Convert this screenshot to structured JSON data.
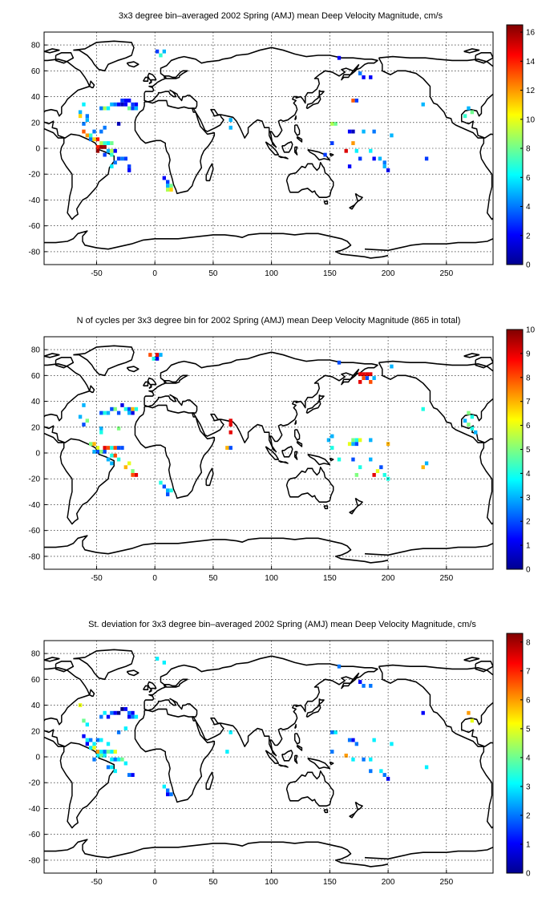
{
  "figure": {
    "panels": [
      {
        "title": "3x3 degree bin–averaged 2002 Spring (AMJ) mean Deep Velocity Magnitude, cm/s",
        "colorbar": {
          "ticks": [
            0,
            2,
            4,
            6,
            8,
            10,
            12,
            14,
            16
          ],
          "min": 0,
          "max": 16.5
        }
      },
      {
        "title": "N of cycles per 3x3 degree bin for 2002 Spring (AMJ) mean Deep Velocity Magnitude (865 in total)",
        "colorbar": {
          "ticks": [
            0,
            1,
            2,
            3,
            4,
            5,
            6,
            7,
            8,
            9,
            10
          ],
          "min": 0,
          "max": 10
        }
      },
      {
        "title": "St. deviation for 3x3 degree bin–averaged 2002 Spring (AMJ) mean Deep Velocity Magnitude, cm/s",
        "colorbar": {
          "ticks": [
            0,
            1,
            2,
            3,
            4,
            5,
            6,
            7,
            8
          ],
          "min": 0,
          "max": 8.3
        }
      }
    ]
  },
  "chart_data": [
    {
      "type": "heatmap",
      "title": "3x3 degree bin–averaged 2002 Spring (AMJ) mean Deep Velocity Magnitude, cm/s",
      "xlim": [
        -95,
        290
      ],
      "ylim": [
        -90,
        90
      ],
      "xticks": [
        -50,
        0,
        50,
        100,
        150,
        200,
        250
      ],
      "yticks": [
        -80,
        -60,
        -40,
        -20,
        0,
        20,
        40,
        60,
        80
      ],
      "grid": true,
      "colormap": "jet",
      "colorbar_range": [
        0,
        16.5
      ],
      "cells": [
        [
          2,
          75,
          3
        ],
        [
          8,
          75,
          5
        ],
        [
          5,
          72,
          7
        ],
        [
          -28,
          37,
          3
        ],
        [
          -25,
          37,
          2
        ],
        [
          -22,
          37,
          2
        ],
        [
          -31,
          34,
          2
        ],
        [
          -28,
          34,
          1
        ],
        [
          -25,
          34,
          2
        ],
        [
          -19,
          34,
          3
        ],
        [
          -16,
          34,
          2
        ],
        [
          -37,
          34,
          5
        ],
        [
          -34,
          34,
          4
        ],
        [
          -46,
          31,
          4
        ],
        [
          -43,
          31,
          9
        ],
        [
          -40,
          31,
          6
        ],
        [
          -22,
          31,
          8
        ],
        [
          -19,
          31,
          3
        ],
        [
          -16,
          31,
          5
        ],
        [
          -61,
          34,
          6
        ],
        [
          -64,
          28,
          5
        ],
        [
          -58,
          25,
          4
        ],
        [
          -64,
          25,
          11
        ],
        [
          -58,
          22,
          5
        ],
        [
          -61,
          19,
          4
        ],
        [
          -31,
          19,
          1
        ],
        [
          -43,
          16,
          4
        ],
        [
          -46,
          13,
          4
        ],
        [
          -61,
          13,
          13
        ],
        [
          -58,
          10,
          12
        ],
        [
          -55,
          10,
          7
        ],
        [
          -52,
          13,
          4
        ],
        [
          -55,
          7,
          4
        ],
        [
          -52,
          7,
          11
        ],
        [
          -49,
          7,
          14
        ],
        [
          -46,
          4,
          9
        ],
        [
          -43,
          4,
          7
        ],
        [
          -40,
          4,
          6
        ],
        [
          -37,
          4,
          8
        ],
        [
          -49,
          1,
          14
        ],
        [
          -46,
          1,
          16
        ],
        [
          -43,
          1,
          16
        ],
        [
          -49,
          -2,
          16
        ],
        [
          -40,
          -2,
          5
        ],
        [
          -37,
          -2,
          9
        ],
        [
          -34,
          -2,
          2
        ],
        [
          -43,
          -5,
          3
        ],
        [
          -37,
          -5,
          7
        ],
        [
          -31,
          -8,
          3
        ],
        [
          -28,
          -8,
          4
        ],
        [
          -25,
          -8,
          3
        ],
        [
          -34,
          -11,
          4
        ],
        [
          -37,
          -14,
          6
        ],
        [
          -22,
          -14,
          3
        ],
        [
          -22,
          -17,
          2
        ],
        [
          8,
          -23,
          2
        ],
        [
          11,
          -26,
          3
        ],
        [
          11,
          -29,
          5
        ],
        [
          14,
          -29,
          8
        ],
        [
          11,
          -32,
          9
        ],
        [
          14,
          -32,
          11
        ],
        [
          65,
          22,
          5
        ],
        [
          65,
          16,
          5
        ],
        [
          158,
          70,
          2
        ],
        [
          176,
          58,
          4
        ],
        [
          179,
          55,
          2
        ],
        [
          185,
          55,
          2
        ],
        [
          170,
          37,
          13
        ],
        [
          173,
          37,
          3
        ],
        [
          230,
          34,
          5
        ],
        [
          152,
          19,
          9
        ],
        [
          155,
          19,
          8
        ],
        [
          167,
          13,
          2
        ],
        [
          170,
          13,
          1
        ],
        [
          179,
          13,
          5
        ],
        [
          188,
          13,
          4
        ],
        [
          203,
          10,
          5
        ],
        [
          152,
          4,
          3
        ],
        [
          170,
          4,
          12
        ],
        [
          164,
          -2,
          15
        ],
        [
          173,
          -2,
          6
        ],
        [
          185,
          -2,
          6
        ],
        [
          146,
          -5,
          3
        ],
        [
          176,
          -8,
          3
        ],
        [
          188,
          -8,
          2
        ],
        [
          193,
          -8,
          5
        ],
        [
          197,
          -11,
          4
        ],
        [
          197,
          -14,
          5
        ],
        [
          200,
          -17,
          2
        ],
        [
          167,
          -14,
          2
        ],
        [
          233,
          -8,
          3
        ],
        [
          269,
          31,
          5
        ],
        [
          272,
          28,
          8
        ],
        [
          266,
          25,
          7
        ]
      ]
    },
    {
      "type": "heatmap",
      "title": "N of cycles per 3x3 degree bin for 2002 Spring (AMJ) mean Deep Velocity Magnitude (865 in total)",
      "xlim": [
        -95,
        290
      ],
      "ylim": [
        -90,
        90
      ],
      "xticks": [
        -50,
        0,
        50,
        100,
        150,
        200,
        250
      ],
      "yticks": [
        -80,
        -60,
        -40,
        -20,
        0,
        20,
        40,
        60,
        80
      ],
      "grid": true,
      "colormap": "jet",
      "colorbar_range": [
        0,
        10
      ],
      "cells": [
        [
          -4,
          76,
          8
        ],
        [
          -1,
          73,
          4
        ],
        [
          2,
          76,
          9
        ],
        [
          2,
          73,
          1
        ],
        [
          5,
          76,
          3
        ],
        [
          -61,
          37,
          3
        ],
        [
          -28,
          37,
          1
        ],
        [
          -37,
          34,
          2
        ],
        [
          -34,
          34,
          5
        ],
        [
          -25,
          34,
          4
        ],
        [
          -22,
          34,
          2
        ],
        [
          -19,
          34,
          7
        ],
        [
          -16,
          34,
          4
        ],
        [
          -46,
          31,
          2
        ],
        [
          -43,
          31,
          4
        ],
        [
          -40,
          31,
          3
        ],
        [
          -31,
          31,
          2
        ],
        [
          -22,
          31,
          3
        ],
        [
          -19,
          31,
          1
        ],
        [
          -64,
          28,
          3
        ],
        [
          -58,
          25,
          5
        ],
        [
          -61,
          22,
          2
        ],
        [
          -31,
          19,
          5
        ],
        [
          -46,
          19,
          3
        ],
        [
          -46,
          16,
          4
        ],
        [
          -55,
          7,
          5
        ],
        [
          -52,
          7,
          7
        ],
        [
          -49,
          4,
          6
        ],
        [
          -43,
          4,
          9
        ],
        [
          -40,
          4,
          8
        ],
        [
          -37,
          4,
          4
        ],
        [
          -34,
          4,
          8
        ],
        [
          -31,
          4,
          2
        ],
        [
          -28,
          4,
          2
        ],
        [
          -52,
          1,
          3
        ],
        [
          -49,
          1,
          2
        ],
        [
          -46,
          1,
          5
        ],
        [
          -43,
          1,
          2
        ],
        [
          -37,
          -2,
          4
        ],
        [
          -34,
          -2,
          8
        ],
        [
          -40,
          -5,
          3
        ],
        [
          -31,
          -5,
          4
        ],
        [
          -37,
          -8,
          3
        ],
        [
          -22,
          -8,
          6
        ],
        [
          -25,
          -11,
          7
        ],
        [
          -19,
          -14,
          5
        ],
        [
          -19,
          -17,
          8
        ],
        [
          -16,
          -17,
          9
        ],
        [
          5,
          -23,
          4
        ],
        [
          8,
          -26,
          2
        ],
        [
          11,
          -29,
          3
        ],
        [
          14,
          -29,
          4
        ],
        [
          11,
          -32,
          2
        ],
        [
          65,
          25,
          9
        ],
        [
          65,
          22,
          9
        ],
        [
          65,
          16,
          9
        ],
        [
          62,
          4,
          7
        ],
        [
          65,
          4,
          2
        ],
        [
          176,
          61,
          9
        ],
        [
          179,
          61,
          9
        ],
        [
          182,
          61,
          9
        ],
        [
          185,
          61,
          9
        ],
        [
          179,
          58,
          8
        ],
        [
          176,
          55,
          9
        ],
        [
          185,
          55,
          8
        ],
        [
          188,
          58,
          3
        ],
        [
          182,
          58,
          2
        ],
        [
          203,
          67,
          3
        ],
        [
          158,
          70,
          2
        ],
        [
          230,
          34,
          4
        ],
        [
          152,
          13,
          3
        ],
        [
          149,
          10,
          3
        ],
        [
          170,
          10,
          5
        ],
        [
          173,
          10,
          4
        ],
        [
          176,
          10,
          6
        ],
        [
          185,
          10,
          3
        ],
        [
          167,
          7,
          6
        ],
        [
          170,
          7,
          3
        ],
        [
          173,
          7,
          2
        ],
        [
          200,
          7,
          7
        ],
        [
          152,
          4,
          4
        ],
        [
          158,
          -5,
          4
        ],
        [
          170,
          -5,
          2
        ],
        [
          185,
          -5,
          3
        ],
        [
          233,
          -8,
          3
        ],
        [
          230,
          -11,
          7
        ],
        [
          176,
          -11,
          4
        ],
        [
          194,
          -11,
          2
        ],
        [
          191,
          -14,
          6
        ],
        [
          188,
          -17,
          9
        ],
        [
          197,
          -17,
          4
        ],
        [
          173,
          -17,
          5
        ],
        [
          200,
          -20,
          4
        ],
        [
          269,
          31,
          5
        ],
        [
          272,
          28,
          4
        ],
        [
          266,
          25,
          3
        ],
        [
          269,
          22,
          5
        ],
        [
          272,
          19,
          4
        ],
        [
          275,
          16,
          3
        ]
      ]
    },
    {
      "type": "heatmap",
      "title": "St. deviation for 3x3 degree bin–averaged 2002 Spring (AMJ) mean Deep Velocity Magnitude, cm/s",
      "xlim": [
        -95,
        290
      ],
      "ylim": [
        -90,
        90
      ],
      "xticks": [
        -50,
        0,
        50,
        100,
        150,
        200,
        250
      ],
      "yticks": [
        -80,
        -60,
        -40,
        -20,
        0,
        20,
        40,
        60,
        80
      ],
      "grid": true,
      "colormap": "jet",
      "colorbar_range": [
        0,
        8.3
      ],
      "cells": [
        [
          2,
          76,
          3
        ],
        [
          8,
          73,
          3
        ],
        [
          -64,
          40,
          5
        ],
        [
          -61,
          28,
          4
        ],
        [
          -58,
          25,
          3
        ],
        [
          -43,
          34,
          3
        ],
        [
          -37,
          34,
          2
        ],
        [
          -34,
          34,
          1
        ],
        [
          -31,
          34,
          0
        ],
        [
          -28,
          37,
          0
        ],
        [
          -25,
          37,
          1
        ],
        [
          -22,
          34,
          2
        ],
        [
          -19,
          34,
          1
        ],
        [
          -46,
          31,
          2
        ],
        [
          -40,
          31,
          1
        ],
        [
          -22,
          31,
          1
        ],
        [
          -19,
          31,
          2
        ],
        [
          -16,
          31,
          3
        ],
        [
          -25,
          22,
          3
        ],
        [
          -31,
          19,
          2
        ],
        [
          -61,
          16,
          1
        ],
        [
          -58,
          13,
          3
        ],
        [
          -55,
          13,
          2
        ],
        [
          -52,
          10,
          3
        ],
        [
          -58,
          10,
          1
        ],
        [
          -49,
          13,
          2
        ],
        [
          -46,
          13,
          3
        ],
        [
          -40,
          10,
          3
        ],
        [
          -55,
          7,
          3
        ],
        [
          -52,
          7,
          5
        ],
        [
          -49,
          4,
          6
        ],
        [
          -46,
          4,
          3
        ],
        [
          -43,
          4,
          2
        ],
        [
          -40,
          4,
          4
        ],
        [
          -37,
          4,
          3
        ],
        [
          -34,
          4,
          5
        ],
        [
          -49,
          1,
          3
        ],
        [
          -46,
          1,
          4
        ],
        [
          -43,
          1,
          3
        ],
        [
          -52,
          -2,
          2
        ],
        [
          -37,
          -2,
          3
        ],
        [
          -34,
          -2,
          2
        ],
        [
          -31,
          -2,
          3
        ],
        [
          -28,
          -2,
          4
        ],
        [
          -25,
          -5,
          3
        ],
        [
          -40,
          -8,
          2
        ],
        [
          -37,
          -8,
          3
        ],
        [
          -34,
          -11,
          3
        ],
        [
          -22,
          -14,
          2
        ],
        [
          -19,
          -14,
          1
        ],
        [
          8,
          -23,
          3
        ],
        [
          11,
          -26,
          2
        ],
        [
          11,
          -29,
          1
        ],
        [
          14,
          -29,
          2
        ],
        [
          65,
          19,
          3
        ],
        [
          62,
          4,
          3
        ],
        [
          158,
          70,
          2
        ],
        [
          176,
          58,
          1
        ],
        [
          179,
          55,
          2
        ],
        [
          185,
          55,
          2
        ],
        [
          230,
          34,
          1
        ],
        [
          152,
          19,
          2
        ],
        [
          155,
          19,
          3
        ],
        [
          167,
          13,
          2
        ],
        [
          170,
          13,
          1
        ],
        [
          173,
          10,
          2
        ],
        [
          188,
          13,
          3
        ],
        [
          203,
          10,
          3
        ],
        [
          152,
          4,
          2
        ],
        [
          164,
          1,
          6
        ],
        [
          170,
          -2,
          3
        ],
        [
          179,
          -2,
          2
        ],
        [
          185,
          -2,
          3
        ],
        [
          233,
          -8,
          3
        ],
        [
          185,
          -11,
          2
        ],
        [
          194,
          -11,
          3
        ],
        [
          197,
          -14,
          2
        ],
        [
          200,
          -17,
          1
        ],
        [
          269,
          34,
          6
        ],
        [
          272,
          28,
          5
        ]
      ]
    }
  ]
}
